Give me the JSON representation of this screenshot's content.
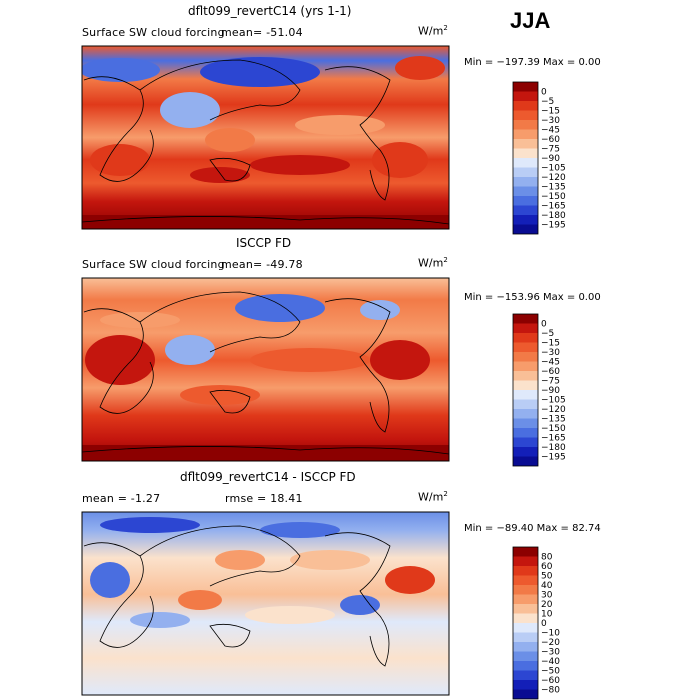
{
  "season": "JJA",
  "units_base": "W/m",
  "units_exp": "2",
  "panels": [
    {
      "title": "dflt099_revertC14 (yrs 1-1)",
      "subtitle": "Surface SW cloud forcing",
      "mean_text": "mean= -51.04",
      "minmax_text": "Min = −197.39 Max =    0.00"
    },
    {
      "title": "ISCCP FD",
      "subtitle": "Surface SW cloud forcing",
      "mean_text": "mean= -49.78",
      "minmax_text": "Min = −153.96 Max =    0.00"
    },
    {
      "title": "dflt099_revertC14 - ISCCP FD",
      "mean_text": "mean =   -1.27",
      "rmse_text": "rmse =   18.41",
      "minmax_text": "Min = −89.40 Max =  82.74"
    }
  ],
  "chart_data": [
    {
      "type": "heatmap",
      "title": "dflt099_revertC14 (yrs 1-1)",
      "subtitle": "Surface SW cloud forcing",
      "mean": -51.04,
      "min": -197.39,
      "max": 0.0,
      "units": "W/m2",
      "colorbar_levels": [
        "0",
        "−5",
        "−15",
        "−30",
        "−45",
        "−60",
        "−75",
        "−90",
        "−105",
        "−120",
        "−135",
        "−150",
        "−165",
        "−180",
        "−195"
      ],
      "colorbar_colors": [
        "#8c0000",
        "#c4160e",
        "#e0391a",
        "#ed5a2e",
        "#f27a47",
        "#f79c6b",
        "#f9bf97",
        "#fbe2cc",
        "#dfe9fb",
        "#b9cdf5",
        "#93b0ef",
        "#6b8fe7",
        "#4a6ee0",
        "#2c46d2",
        "#131fb8",
        "#090c92"
      ]
    },
    {
      "type": "heatmap",
      "title": "ISCCP FD",
      "subtitle": "Surface SW cloud forcing",
      "mean": -49.78,
      "min": -153.96,
      "max": 0.0,
      "units": "W/m2",
      "colorbar_levels": [
        "0",
        "−5",
        "−15",
        "−30",
        "−45",
        "−60",
        "−75",
        "−90",
        "−105",
        "−120",
        "−135",
        "−150",
        "−165",
        "−180",
        "−195"
      ],
      "colorbar_colors": [
        "#8c0000",
        "#c4160e",
        "#e0391a",
        "#ed5a2e",
        "#f27a47",
        "#f79c6b",
        "#f9bf97",
        "#fbe2cc",
        "#dfe9fb",
        "#b9cdf5",
        "#93b0ef",
        "#6b8fe7",
        "#4a6ee0",
        "#2c46d2",
        "#131fb8",
        "#090c92"
      ]
    },
    {
      "type": "heatmap",
      "title": "dflt099_revertC14 - ISCCP FD",
      "mean": -1.27,
      "rmse": 18.41,
      "min": -89.4,
      "max": 82.74,
      "units": "W/m2",
      "colorbar_levels": [
        "80",
        "60",
        "50",
        "40",
        "30",
        "20",
        "10",
        "0",
        "−10",
        "−20",
        "−30",
        "−40",
        "−50",
        "−60",
        "−80"
      ],
      "colorbar_colors": [
        "#8c0000",
        "#c4160e",
        "#e0391a",
        "#ed5a2e",
        "#f27a47",
        "#f79c6b",
        "#f9bf97",
        "#fbe2cc",
        "#dfe9fb",
        "#b9cdf5",
        "#93b0ef",
        "#6b8fe7",
        "#4a6ee0",
        "#2c46d2",
        "#131fb8",
        "#090c92"
      ]
    }
  ]
}
